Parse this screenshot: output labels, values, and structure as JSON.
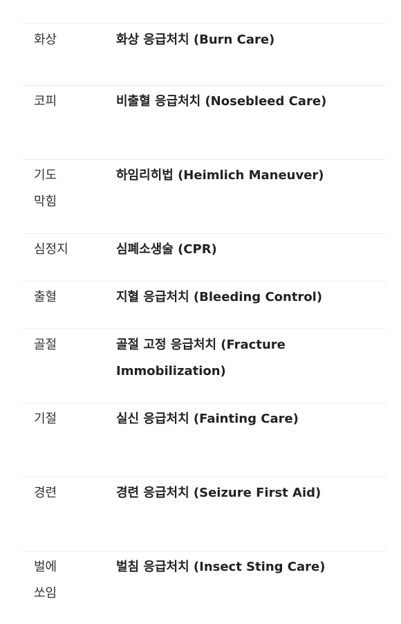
{
  "rows": [
    {
      "condition": "화상",
      "method": "화상 응급처치 (Burn Care)"
    },
    {
      "condition": "코피",
      "method": "비출혈 응급처치 (Nosebleed Care)"
    },
    {
      "condition": "기도 막힘",
      "method": "하임리히법 (Heimlich Maneuver)"
    },
    {
      "condition": "심정지",
      "method": "심폐소생술 (CPR)"
    },
    {
      "condition": "출혈",
      "method": "지혈 응급처치 (Bleeding Control)"
    },
    {
      "condition": "골절",
      "method": "골절 고정 응급처치 (Fracture Immobilization)"
    },
    {
      "condition": "기절",
      "method": "실신 응급처치 (Fainting Care)"
    },
    {
      "condition": "경련",
      "method": "경련 응급처치 (Seizure First Aid)"
    },
    {
      "condition": "벌에 쏘임",
      "method": "벌침 응급처치 (Insect Sting Care)"
    }
  ]
}
